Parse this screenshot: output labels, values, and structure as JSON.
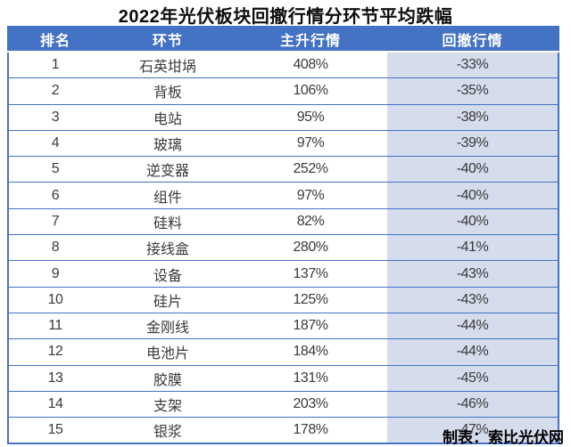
{
  "title": "2022年光伏板块回撤行情分环节平均跌幅",
  "footer_credit": "制表：索比光伏网",
  "colors": {
    "header_bg": "#4472C4",
    "border": "#4472C4",
    "drawdown_column_bg": "#D5DCEC",
    "header_text": "#FFFFFF",
    "body_text": "#3A3A3A"
  },
  "chart_data": {
    "type": "table",
    "title": "2022年光伏板块回撤行情分环节平均跌幅",
    "columns": [
      "排名",
      "环节",
      "主升行情",
      "回撤行情"
    ],
    "rows": [
      [
        "1",
        "石英坩埚",
        "408%",
        "-33%"
      ],
      [
        "2",
        "背板",
        "106%",
        "-35%"
      ],
      [
        "3",
        "电站",
        "95%",
        "-38%"
      ],
      [
        "4",
        "玻璃",
        "97%",
        "-39%"
      ],
      [
        "5",
        "逆变器",
        "252%",
        "-40%"
      ],
      [
        "6",
        "组件",
        "97%",
        "-40%"
      ],
      [
        "7",
        "硅料",
        "82%",
        "-40%"
      ],
      [
        "8",
        "接线盒",
        "280%",
        "-41%"
      ],
      [
        "9",
        "设备",
        "137%",
        "-43%"
      ],
      [
        "10",
        "硅片",
        "125%",
        "-43%"
      ],
      [
        "11",
        "金刚线",
        "187%",
        "-44%"
      ],
      [
        "12",
        "电池片",
        "184%",
        "-44%"
      ],
      [
        "13",
        "胶膜",
        "131%",
        "-45%"
      ],
      [
        "14",
        "支架",
        "203%",
        "-46%"
      ],
      [
        "15",
        "银浆",
        "178%",
        "-47%"
      ]
    ],
    "credit": "制表：索比光伏网",
    "layout": {
      "header_style": "solid-blue-bar",
      "highlighted_column": 3,
      "grid": "horizontal-blue-rules"
    }
  }
}
